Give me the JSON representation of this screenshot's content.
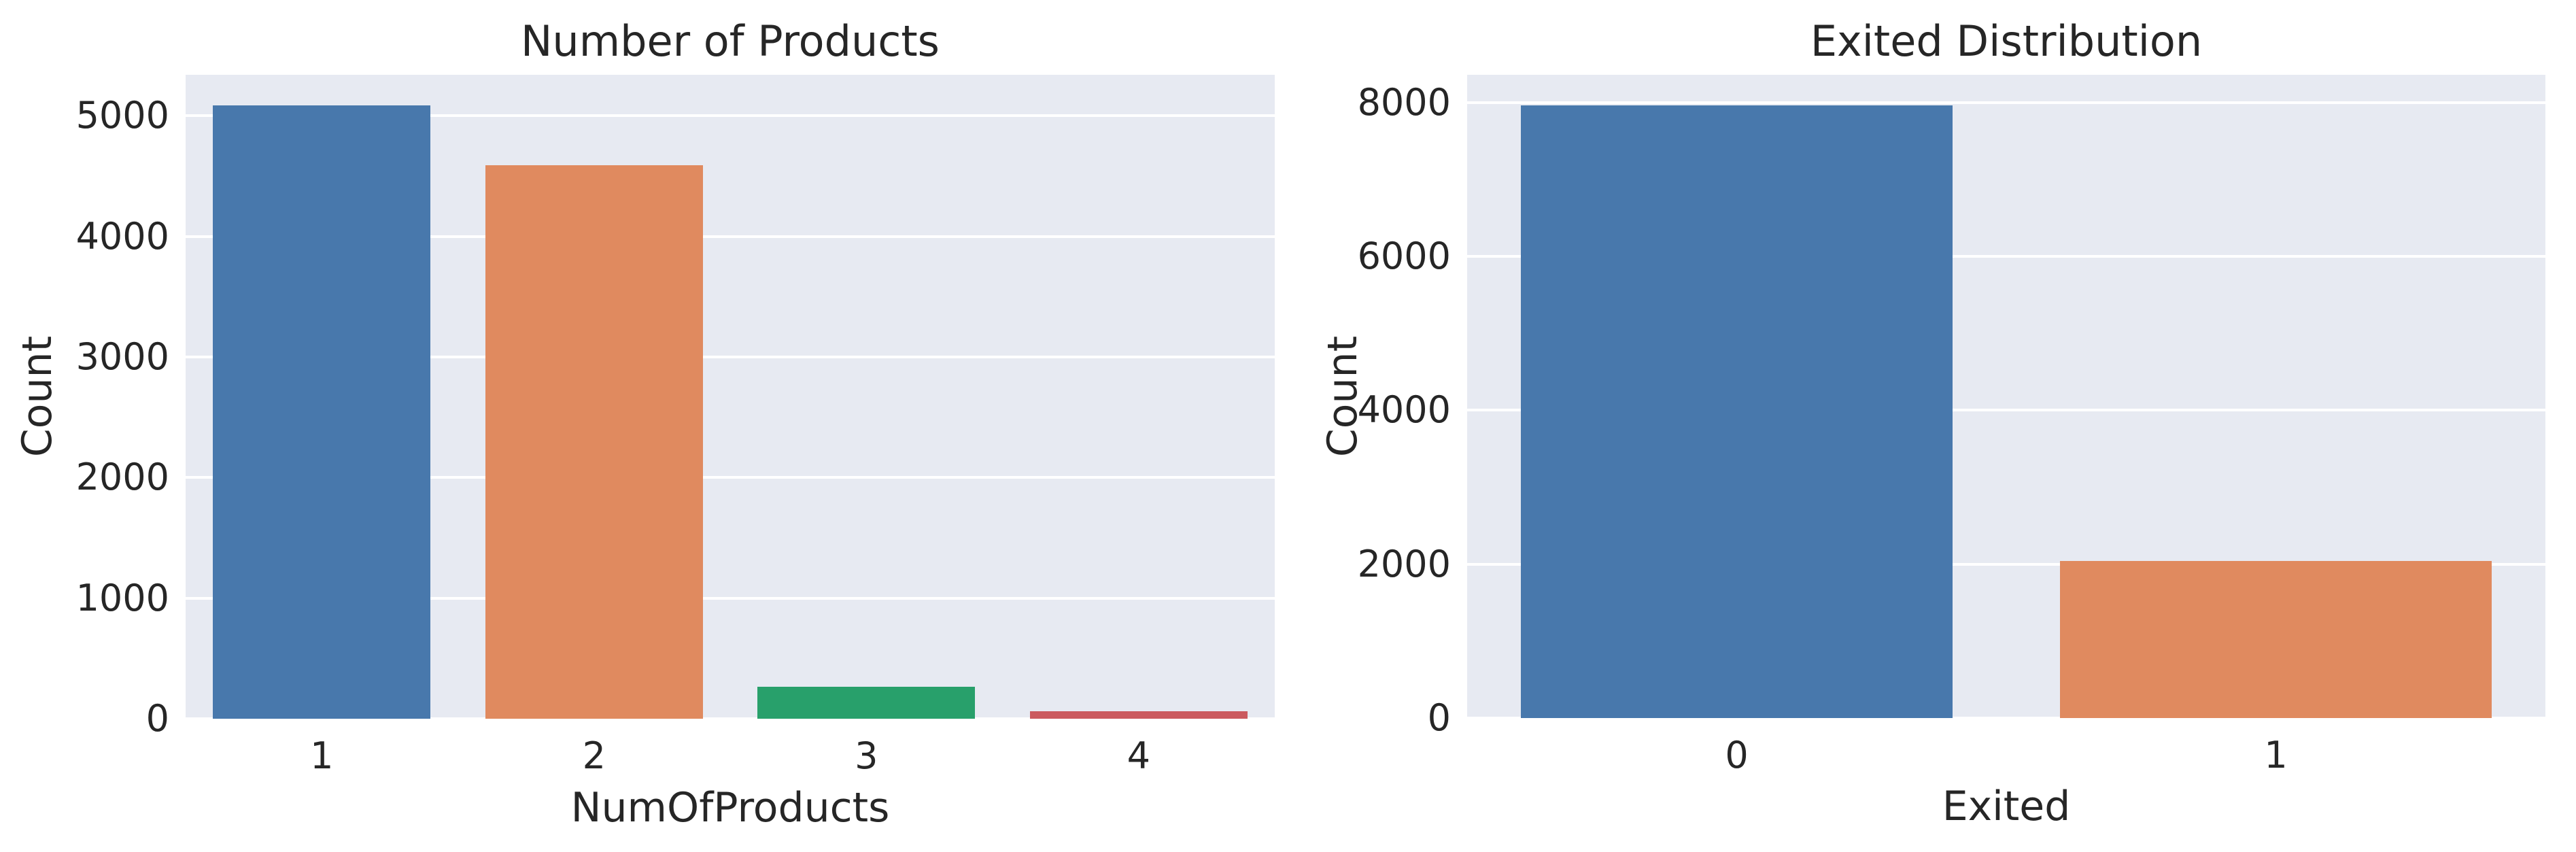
{
  "figure": {
    "background_color": "#ffffff",
    "panel_background_color": "#e7eaf2",
    "grid_color": "#ffffff",
    "text_color": "#262626"
  },
  "chart_data": [
    {
      "type": "bar",
      "title": "Number of Products",
      "xlabel": "NumOfProducts",
      "ylabel": "Count",
      "categories": [
        "1",
        "2",
        "3",
        "4"
      ],
      "values": [
        5084,
        4590,
        266,
        60
      ],
      "bar_colors": [
        "#4878ac",
        "#e08a5f",
        "#28a06b",
        "#cb5a5f"
      ],
      "y_ticks": [
        0,
        1000,
        2000,
        3000,
        4000,
        5000
      ],
      "ylim": [
        0,
        5340
      ],
      "grid": true,
      "legend_position": "none",
      "bar_width_fraction": 0.8
    },
    {
      "type": "bar",
      "title": "Exited Distribution",
      "xlabel": "Exited",
      "ylabel": "Count",
      "categories": [
        "0",
        "1"
      ],
      "values": [
        7963,
        2037
      ],
      "bar_colors": [
        "#4878ac",
        "#e08a5f"
      ],
      "y_ticks": [
        0,
        2000,
        4000,
        6000,
        8000
      ],
      "ylim": [
        0,
        8360
      ],
      "grid": true,
      "legend_position": "none",
      "bar_width_fraction": 0.8
    }
  ]
}
